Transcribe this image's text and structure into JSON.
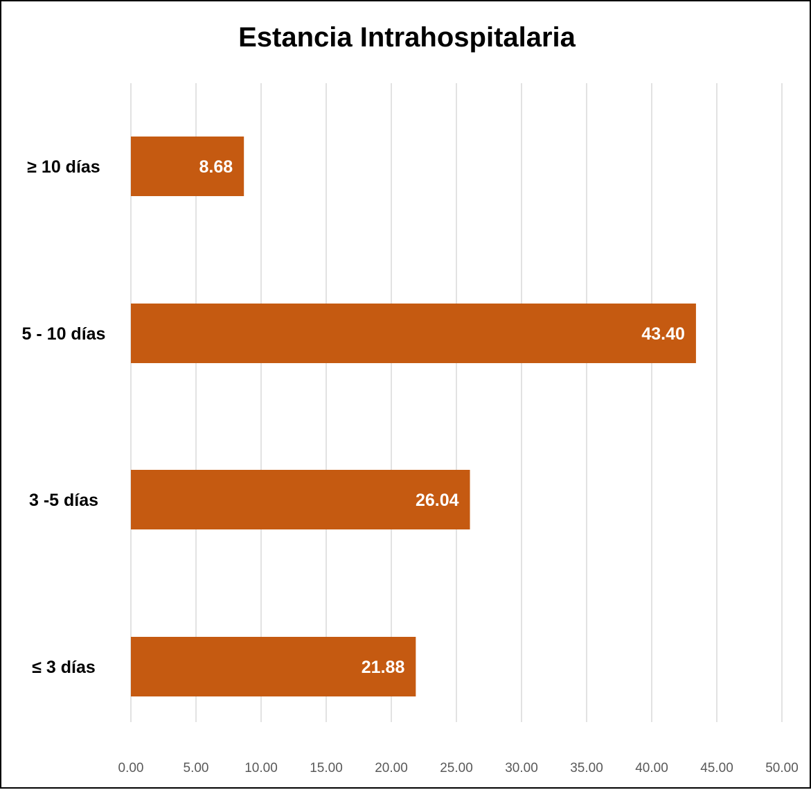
{
  "chart_data": {
    "type": "bar",
    "orientation": "horizontal",
    "title": "Estancia Intrahospitalaria",
    "categories": [
      "≥ 10 días",
      "5 - 10 días",
      "3 -5 días",
      "≤ 3 días"
    ],
    "values": [
      8.68,
      43.4,
      26.04,
      21.88
    ],
    "value_labels": [
      "8.68",
      "43.40",
      "26.04",
      "21.88"
    ],
    "xlim": [
      0,
      50
    ],
    "x_ticks": [
      "0.00",
      "5.00",
      "10.00",
      "15.00",
      "20.00",
      "25.00",
      "30.00",
      "35.00",
      "40.00",
      "45.00",
      "50.00"
    ],
    "xlabel": "",
    "ylabel": "",
    "grid": "vertical",
    "legend": "none",
    "colors": {
      "bar": "#C55A11",
      "grid": "#D9D9D9",
      "tick_text": "#595959",
      "label_text": "#ffffff"
    }
  }
}
